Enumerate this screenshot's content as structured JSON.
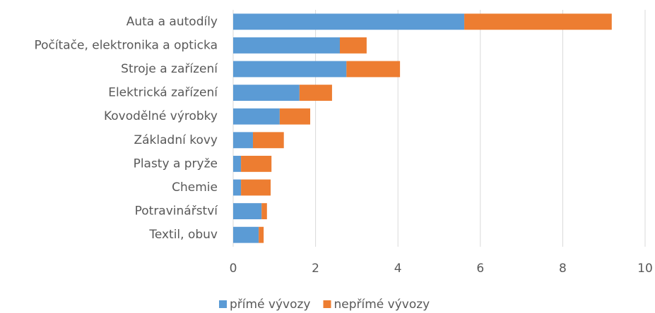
{
  "chart_data": {
    "type": "stacked_barh",
    "categories": [
      "Auta a autodíly",
      "Počítače, elektronika a opticka",
      "Stroje a zařízení",
      "Elektrická zařízení",
      "Kovodělné výrobky",
      "Základní kovy",
      "Plasty a pryže",
      "Chemie",
      "Potravinářství",
      "Textil, obuv"
    ],
    "series": [
      {
        "name": "přímé vývozy",
        "color": "#5b9bd5",
        "values": [
          5.61,
          2.59,
          2.75,
          1.61,
          1.13,
          0.48,
          0.19,
          0.19,
          0.69,
          0.62
        ]
      },
      {
        "name": "nepřímé vývozy",
        "color": "#ed7d31",
        "values": [
          3.58,
          0.65,
          1.3,
          0.79,
          0.74,
          0.75,
          0.74,
          0.72,
          0.13,
          0.12
        ]
      }
    ],
    "xlim": [
      0,
      10
    ],
    "xticks": [
      0,
      2,
      4,
      6,
      8,
      10
    ],
    "grid": true,
    "legend": "bottom"
  }
}
